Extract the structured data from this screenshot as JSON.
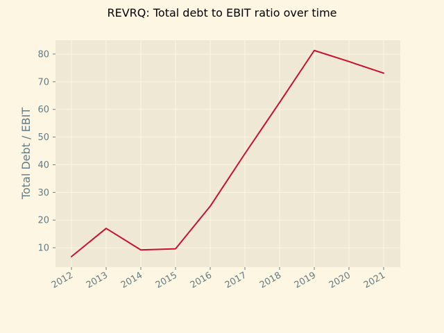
{
  "chart_data": {
    "type": "line",
    "title": "REVRQ: Total debt to EBIT ratio over time",
    "xlabel": "",
    "ylabel": "Total Debt / EBIT",
    "x": [
      "2012",
      "2013",
      "2014",
      "2015",
      "2016",
      "2017",
      "2018",
      "2019",
      "2020",
      "2021"
    ],
    "series": [
      {
        "values": [
          6.8,
          17.0,
          9.2,
          9.6,
          25.0,
          44.0,
          62.5,
          81.3,
          77.3,
          73.1
        ]
      }
    ],
    "xlim": [
      "2012",
      "2021"
    ],
    "ylim": [
      3,
      85
    ],
    "yticks": [
      10,
      20,
      30,
      40,
      50,
      60,
      70,
      80
    ],
    "grid": true,
    "colors": {
      "background": "#fdf6e3",
      "plot_background": "#eee8d5",
      "line": "#c8102e",
      "grid": "#fdf6e3",
      "text": "#657b83"
    }
  }
}
